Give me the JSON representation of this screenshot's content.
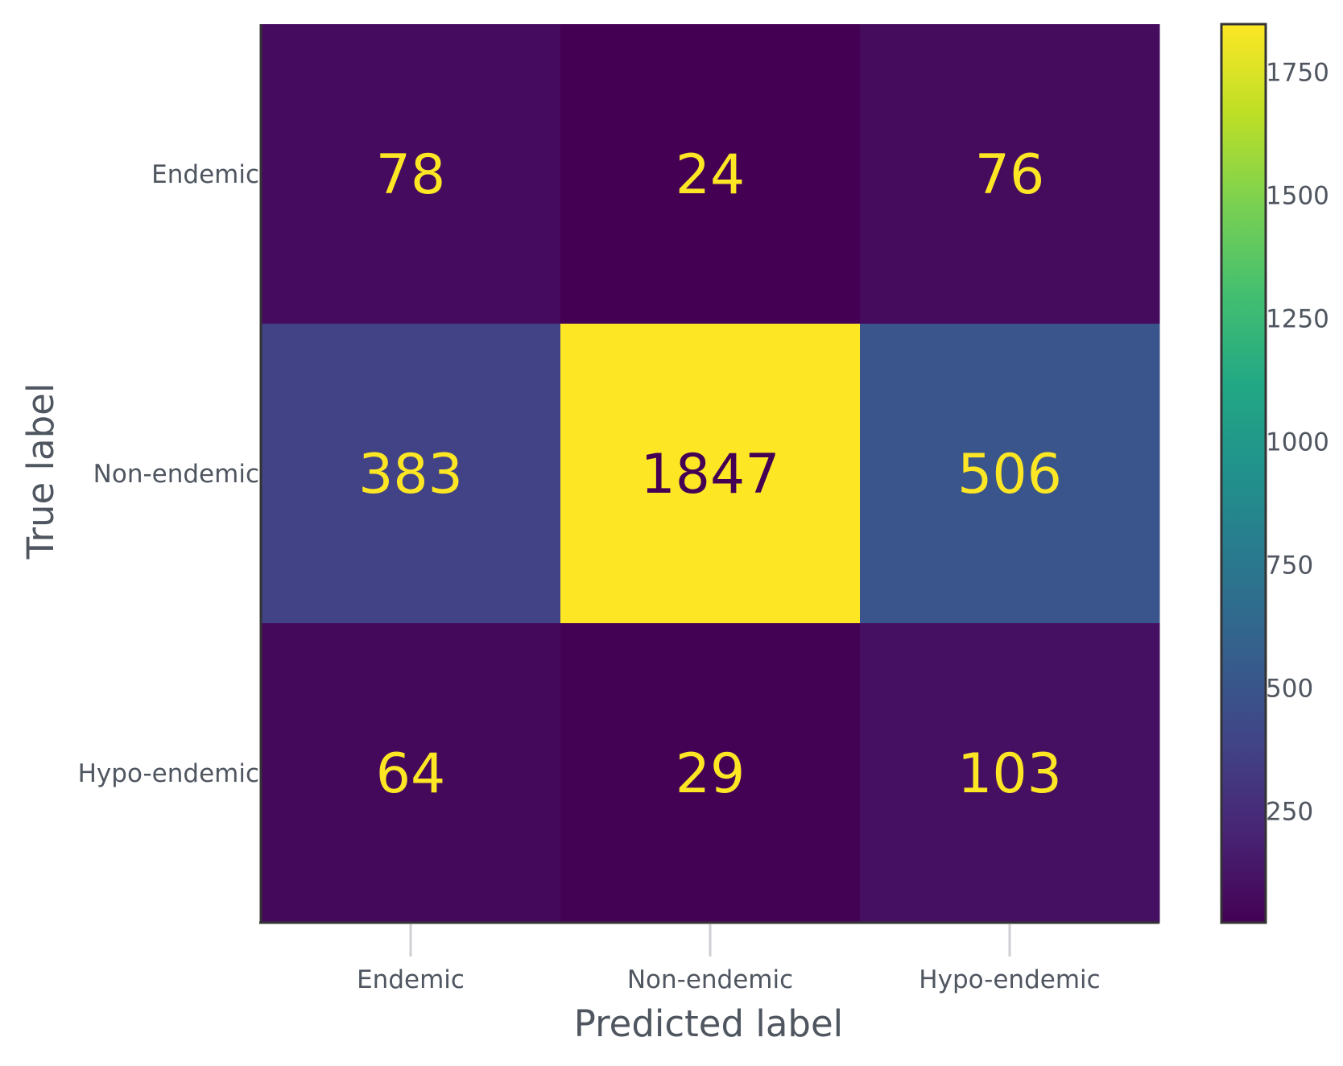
{
  "chart_data": {
    "type": "heatmap",
    "title": "",
    "xlabel": "Predicted label",
    "ylabel": "True label",
    "x_categories": [
      "Endemic",
      "Non-endemic",
      "Hypo-endemic"
    ],
    "y_categories": [
      "Endemic",
      "Non-endemic",
      "Hypo-endemic"
    ],
    "values": [
      [
        78,
        24,
        76
      ],
      [
        383,
        1847,
        506
      ],
      [
        64,
        29,
        103
      ]
    ],
    "colormap": "viridis",
    "color_range": [
      24,
      1847
    ],
    "colorbar_ticks": [
      "250",
      "500",
      "750",
      "1000",
      "1250",
      "1500",
      "1750"
    ],
    "colorbar_tick_values": [
      250,
      500,
      750,
      1000,
      1250,
      1500,
      1750
    ],
    "text_color_high": "#fde725",
    "text_color_low": "#440154",
    "axis_color": "#333333",
    "tick_color": "#cfcfd4"
  }
}
